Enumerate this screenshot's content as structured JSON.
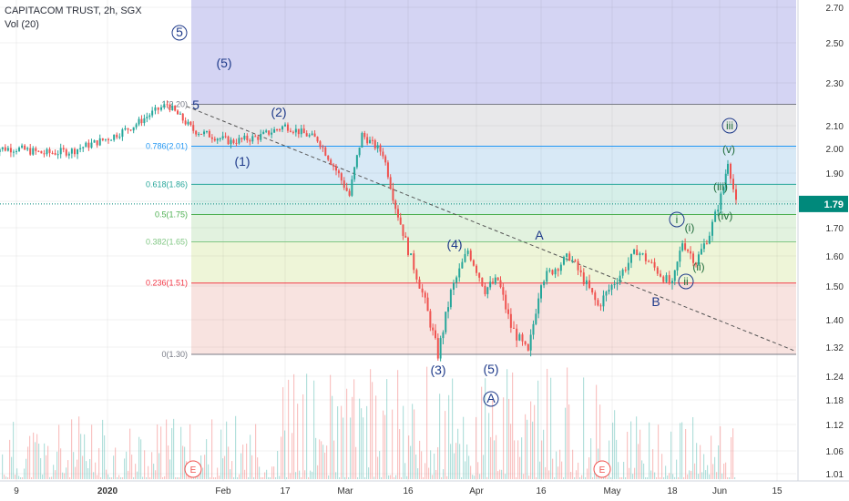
{
  "header": {
    "symbol": "CAPITACOM TRUST, 2h, SGX",
    "volume_label": "Vol (20)"
  },
  "colors": {
    "up": "#26a69a",
    "down": "#ef5350",
    "current_price_bg": "#00897b",
    "wave_label": "#1e3a8a"
  },
  "current_price": {
    "label": "1.79",
    "value": 1.79
  },
  "chart_data": {
    "type": "candlestick",
    "title": "",
    "x_ticks": [
      "9",
      "2020",
      "Feb",
      "17",
      "Mar",
      "16",
      "Apr",
      "16",
      "May",
      "18",
      "Jun",
      "15"
    ],
    "y_ticks": [
      "2.70",
      "2.50",
      "2.30",
      "2.10",
      "2.00",
      "1.90",
      "1.80",
      "1.70",
      "1.60",
      "1.50",
      "1.40",
      "1.32",
      "1.24",
      "1.18",
      "1.12",
      "1.06",
      "1.01"
    ],
    "y_tick_values": [
      2.7,
      2.5,
      2.3,
      2.1,
      2.0,
      1.9,
      1.8,
      1.7,
      1.6,
      1.5,
      1.4,
      1.32,
      1.24,
      1.18,
      1.12,
      1.06,
      1.01
    ],
    "fib_levels": [
      {
        "label": "1(2.20)",
        "value": 2.2,
        "color": "#787b86"
      },
      {
        "label": "0.786(2.01)",
        "value": 2.01,
        "color": "#2196f3"
      },
      {
        "label": "0.618(1.86)",
        "value": 1.86,
        "color": "#26a69a"
      },
      {
        "label": "0.5(1.75)",
        "value": 1.75,
        "color": "#4caf50"
      },
      {
        "label": "0.382(1.65)",
        "value": 1.65,
        "color": "#81c784"
      },
      {
        "label": "0.236(1.51)",
        "value": 1.51,
        "color": "#f23645"
      },
      {
        "label": "0(1.30)",
        "value": 1.3,
        "color": "#787b86"
      }
    ],
    "approx_close_path": [
      {
        "x": "2019-12-02",
        "y": 2.0
      },
      {
        "x": "2019-12-09",
        "y": 2.0
      },
      {
        "x": "2019-12-16",
        "y": 1.98
      },
      {
        "x": "2019-12-23",
        "y": 1.99
      },
      {
        "x": "2020-01-02",
        "y": 2.05
      },
      {
        "x": "2020-01-08",
        "y": 2.1
      },
      {
        "x": "2020-01-13",
        "y": 2.16
      },
      {
        "x": "2020-01-17",
        "y": 2.2
      },
      {
        "x": "2020-01-24",
        "y": 2.08
      },
      {
        "x": "2020-02-03",
        "y": 2.03
      },
      {
        "x": "2020-02-10",
        "y": 2.05
      },
      {
        "x": "2020-02-17",
        "y": 2.1
      },
      {
        "x": "2020-02-24",
        "y": 2.04
      },
      {
        "x": "2020-03-02",
        "y": 1.82
      },
      {
        "x": "2020-03-05",
        "y": 2.06
      },
      {
        "x": "2020-03-10",
        "y": 1.98
      },
      {
        "x": "2020-03-13",
        "y": 1.78
      },
      {
        "x": "2020-03-16",
        "y": 1.62
      },
      {
        "x": "2020-03-20",
        "y": 1.45
      },
      {
        "x": "2020-03-23",
        "y": 1.3
      },
      {
        "x": "2020-03-26",
        "y": 1.48
      },
      {
        "x": "2020-03-30",
        "y": 1.62
      },
      {
        "x": "2020-04-03",
        "y": 1.49
      },
      {
        "x": "2020-04-06",
        "y": 1.52
      },
      {
        "x": "2020-04-09",
        "y": 1.38
      },
      {
        "x": "2020-04-13",
        "y": 1.3
      },
      {
        "x": "2020-04-16",
        "y": 1.52
      },
      {
        "x": "2020-04-22",
        "y": 1.6
      },
      {
        "x": "2020-04-28",
        "y": 1.44
      },
      {
        "x": "2020-05-04",
        "y": 1.55
      },
      {
        "x": "2020-05-08",
        "y": 1.62
      },
      {
        "x": "2020-05-13",
        "y": 1.56
      },
      {
        "x": "2020-05-18",
        "y": 1.5
      },
      {
        "x": "2020-05-21",
        "y": 1.65
      },
      {
        "x": "2020-05-25",
        "y": 1.58
      },
      {
        "x": "2020-05-29",
        "y": 1.68
      },
      {
        "x": "2020-06-02",
        "y": 1.85
      },
      {
        "x": "2020-06-03",
        "y": 1.95
      },
      {
        "x": "2020-06-05",
        "y": 1.79
      }
    ],
    "wave_labels": [
      "5",
      "5",
      "(5)",
      "(1)",
      "(2)",
      "(3)",
      "(4)",
      "(5)",
      "A",
      "A",
      "B",
      "B",
      "i",
      "(i)",
      "(ii)",
      "ii",
      "(iii)",
      "iii",
      "(iv)",
      "(v)"
    ],
    "events": [
      "E",
      "E"
    ],
    "fib_range": [
      1.3,
      2.2
    ],
    "ylim": [
      1.0,
      2.75
    ]
  }
}
